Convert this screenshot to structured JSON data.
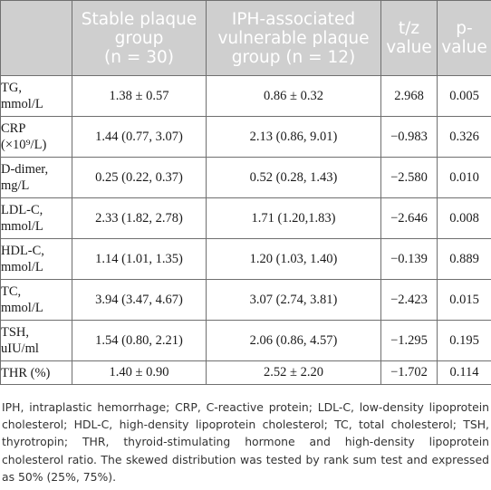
{
  "table": {
    "headers": [
      {
        "main": "",
        "sub": ""
      },
      {
        "main": "Stable plaque group",
        "sub": "(n = 30)"
      },
      {
        "main": "IPH-associated vulnerable plaque",
        "sub": "group (n = 12)"
      },
      {
        "main": "t/z",
        "sub": "value"
      },
      {
        "main": "p-",
        "sub": "value"
      }
    ],
    "rows": [
      {
        "label_line1": "TG,",
        "label_line2": "mmol/L",
        "stable": "1.38 ± 0.57",
        "iph": "0.86 ± 0.32",
        "tz": "2.968",
        "p": "0.005"
      },
      {
        "label_line1": "CRP",
        "label_line2": "(×10⁹/L)",
        "stable": "1.44 (0.77, 3.07)",
        "iph": "2.13 (0.86, 9.01)",
        "tz": "−0.983",
        "p": "0.326"
      },
      {
        "label_line1": "D-dimer,",
        "label_line2": "mg/L",
        "stable": "0.25 (0.22, 0.37)",
        "iph": "0.52 (0.28, 1.43)",
        "tz": "−2.580",
        "p": "0.010"
      },
      {
        "label_line1": "LDL-C,",
        "label_line2": "mmol/L",
        "stable": "2.33 (1.82, 2.78)",
        "iph": "1.71 (1.20,1.83)",
        "tz": "−2.646",
        "p": "0.008"
      },
      {
        "label_line1": "HDL-C,",
        "label_line2": "mmol/L",
        "stable": "1.14 (1.01, 1.35)",
        "iph": "1.20 (1.03, 1.40)",
        "tz": "−0.139",
        "p": "0.889"
      },
      {
        "label_line1": "TC,",
        "label_line2": "mmol/L",
        "stable": "3.94 (3.47, 4.67)",
        "iph": "3.07 (2.74, 3.81)",
        "tz": "−2.423",
        "p": "0.015"
      },
      {
        "label_line1": "TSH,",
        "label_line2": "uIU/ml",
        "stable": "1.54 (0.80, 2.21)",
        "iph": "2.06 (0.86, 4.57)",
        "tz": "−1.295",
        "p": "0.195"
      },
      {
        "label_line1": "THR (%)",
        "label_line2": "",
        "stable": "1.40 ± 0.90",
        "iph": "2.52 ± 2.20",
        "tz": "−1.702",
        "p": "0.114"
      }
    ]
  },
  "footnote": "IPH, intraplastic hemorrhage; CRP, C-reactive protein; LDL-C, low-density lipoprotein cholesterol; HDL-C, high-density lipoprotein cholesterol; TC, total cholesterol; TSH, thyrotropin; THR, thyroid-stimulating hormone and high-density lipoprotein cholesterol ratio. The skewed distribution was tested by rank sum test and expressed as 50% (25%, 75%)."
}
